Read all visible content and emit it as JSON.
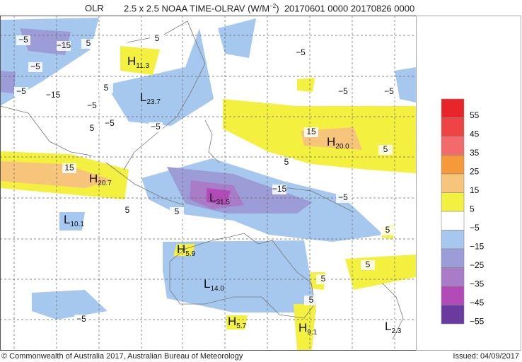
{
  "header": {
    "prefix": "OLR",
    "title": "2.5 x 2.5 NOAA TIME-OLRAV (W/M",
    "superscript": "−2",
    "title_end": ")",
    "period": "20170601 0000 20170826 0000"
  },
  "map": {
    "pressure_centers": [
      {
        "letter": "H",
        "value": "11.3"
      },
      {
        "letter": "L",
        "value": "23.7"
      },
      {
        "letter": "H",
        "value": "20.0"
      },
      {
        "letter": "H",
        "value": "20.7"
      },
      {
        "letter": "L",
        "value": "31.5"
      },
      {
        "letter": "L",
        "value": "10.1"
      },
      {
        "letter": "H",
        "value": "5.9"
      },
      {
        "letter": "L",
        "value": "14.0"
      },
      {
        "letter": "H",
        "value": "5.7"
      },
      {
        "letter": "H",
        "value": "9.1"
      },
      {
        "letter": "L",
        "value": "2.3"
      }
    ],
    "contour_labels": [
      "−5",
      "−15",
      "−5",
      "5",
      "−5",
      "−15",
      "5",
      "−5",
      "−5",
      "−5",
      "5",
      "−5",
      "−5",
      "5",
      "−5",
      "15",
      "15",
      "5",
      "−15",
      "−5",
      "5",
      "5",
      "5",
      "5",
      "5",
      "5",
      "−5",
      "5"
    ]
  },
  "legend": {
    "labels": [
      "55",
      "45",
      "35",
      "25",
      "15",
      "5",
      "−5",
      "−15",
      "−25",
      "−35",
      "−45",
      "−55"
    ],
    "colors": [
      "#e8262a",
      "#ef4444",
      "#f26a6a",
      "#f59a3a",
      "#f6c47a",
      "#f4f040",
      "#ffffff",
      "#a6c8ee",
      "#9c9cd6",
      "#aa7cc8",
      "#b24bb8",
      "#6a3aa0"
    ]
  },
  "footer": {
    "copyright": "© Commonwealth of Australia 2017, Australian Bureau of Meteorology",
    "issued": "Issued: 04/09/2017"
  }
}
